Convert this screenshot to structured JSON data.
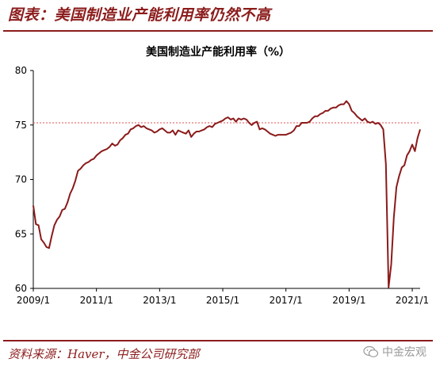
{
  "header": {
    "title": "图表：美国制造业产能利用率仍然不高"
  },
  "footer": {
    "source": "资料来源：Haver，中金公司研究部",
    "watermark": "中金宏观"
  },
  "colors": {
    "brand": "#8c1c1c",
    "series": "#8b1a1a",
    "reference": "#e05050"
  },
  "chart_data": {
    "type": "line",
    "title": "美国制造业产能利用率（%）",
    "xlabel": "",
    "ylabel": "",
    "ylim": [
      60,
      80
    ],
    "yticks": [
      60,
      65,
      70,
      75,
      80
    ],
    "xlim": [
      "2009-01",
      "2021-04"
    ],
    "xticks": [
      "2009/1",
      "2011/1",
      "2013/1",
      "2015/1",
      "2017/1",
      "2019/1",
      "2021/1"
    ],
    "reference_line": {
      "y": 75.2,
      "style": "dotted"
    },
    "grid": false,
    "series": [
      {
        "x": [
          "2009-01",
          "2009-02",
          "2009-03",
          "2009-04",
          "2009-05",
          "2009-06",
          "2009-07",
          "2009-08",
          "2009-09",
          "2009-10",
          "2009-11",
          "2009-12",
          "2010-01",
          "2010-02",
          "2010-03",
          "2010-04",
          "2010-05",
          "2010-06",
          "2010-07",
          "2010-08",
          "2010-09",
          "2010-10",
          "2010-11",
          "2010-12",
          "2011-01",
          "2011-02",
          "2011-03",
          "2011-04",
          "2011-05",
          "2011-06",
          "2011-07",
          "2011-08",
          "2011-09",
          "2011-10",
          "2011-11",
          "2011-12",
          "2012-01",
          "2012-02",
          "2012-03",
          "2012-04",
          "2012-05",
          "2012-06",
          "2012-07",
          "2012-08",
          "2012-09",
          "2012-10",
          "2012-11",
          "2012-12",
          "2013-01",
          "2013-02",
          "2013-03",
          "2013-04",
          "2013-05",
          "2013-06",
          "2013-07",
          "2013-08",
          "2013-09",
          "2013-10",
          "2013-11",
          "2013-12",
          "2014-01",
          "2014-02",
          "2014-03",
          "2014-04",
          "2014-05",
          "2014-06",
          "2014-07",
          "2014-08",
          "2014-09",
          "2014-10",
          "2014-11",
          "2014-12",
          "2015-01",
          "2015-02",
          "2015-03",
          "2015-04",
          "2015-05",
          "2015-06",
          "2015-07",
          "2015-08",
          "2015-09",
          "2015-10",
          "2015-11",
          "2015-12",
          "2016-01",
          "2016-02",
          "2016-03",
          "2016-04",
          "2016-05",
          "2016-06",
          "2016-07",
          "2016-08",
          "2016-09",
          "2016-10",
          "2016-11",
          "2016-12",
          "2017-01",
          "2017-02",
          "2017-03",
          "2017-04",
          "2017-05",
          "2017-06",
          "2017-07",
          "2017-08",
          "2017-09",
          "2017-10",
          "2017-11",
          "2017-12",
          "2018-01",
          "2018-02",
          "2018-03",
          "2018-04",
          "2018-05",
          "2018-06",
          "2018-07",
          "2018-08",
          "2018-09",
          "2018-10",
          "2018-11",
          "2018-12",
          "2019-01",
          "2019-02",
          "2019-03",
          "2019-04",
          "2019-05",
          "2019-06",
          "2019-07",
          "2019-08",
          "2019-09",
          "2019-10",
          "2019-11",
          "2019-12",
          "2020-01",
          "2020-02",
          "2020-03",
          "2020-04",
          "2020-05",
          "2020-06",
          "2020-07",
          "2020-08",
          "2020-09",
          "2020-10",
          "2020-11",
          "2020-12",
          "2021-01",
          "2021-02",
          "2021-03",
          "2021-04"
        ],
        "values": [
          67.6,
          65.9,
          65.8,
          64.5,
          64.2,
          63.8,
          63.7,
          64.8,
          65.8,
          66.3,
          66.6,
          67.2,
          67.3,
          67.9,
          68.7,
          69.2,
          69.9,
          70.8,
          71.0,
          71.3,
          71.5,
          71.6,
          71.8,
          71.9,
          72.2,
          72.4,
          72.6,
          72.7,
          72.8,
          73.0,
          73.3,
          73.1,
          73.2,
          73.6,
          73.8,
          74.1,
          74.2,
          74.6,
          74.7,
          74.9,
          75.0,
          74.8,
          74.9,
          74.7,
          74.6,
          74.5,
          74.3,
          74.4,
          74.6,
          74.7,
          74.5,
          74.3,
          74.3,
          74.5,
          74.1,
          74.5,
          74.4,
          74.3,
          74.2,
          74.5,
          73.9,
          74.2,
          74.4,
          74.4,
          74.5,
          74.6,
          74.8,
          74.9,
          74.8,
          75.1,
          75.2,
          75.3,
          75.4,
          75.6,
          75.7,
          75.5,
          75.6,
          75.3,
          75.6,
          75.5,
          75.6,
          75.5,
          75.2,
          75.0,
          75.2,
          75.3,
          74.6,
          74.7,
          74.6,
          74.4,
          74.2,
          74.1,
          74.0,
          74.1,
          74.1,
          74.1,
          74.1,
          74.2,
          74.3,
          74.5,
          74.9,
          74.9,
          75.2,
          75.2,
          75.2,
          75.3,
          75.6,
          75.8,
          75.8,
          76.0,
          76.1,
          76.3,
          76.3,
          76.5,
          76.6,
          76.6,
          76.8,
          76.9,
          76.9,
          77.2,
          76.9,
          76.3,
          76.1,
          75.8,
          75.6,
          75.4,
          75.6,
          75.3,
          75.2,
          75.3,
          75.1,
          75.2,
          75.0,
          74.6,
          71.4,
          60.1,
          62.2,
          66.5,
          69.3,
          70.3,
          71.1,
          71.3,
          72.2,
          72.6,
          73.2,
          72.6,
          73.8,
          74.6
        ]
      }
    ]
  }
}
